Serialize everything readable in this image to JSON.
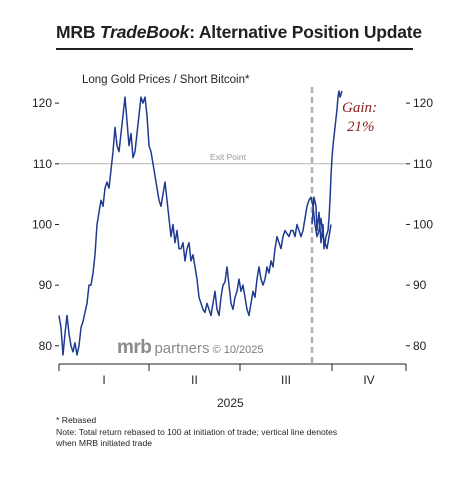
{
  "header": {
    "title_prefix": "MRB ",
    "title_italic": "TradeBook",
    "title_rest": ": Alternative Position Update"
  },
  "brand": {
    "logo_text": "mrb",
    "word": "partners",
    "date": "© 10/2025"
  },
  "notes": {
    "rebased": "* Rebased",
    "note_line1": "Note: Total return rebased to 100 at initiation of trade; vertical line denotes",
    "note_line2": "when MRB initiated trade"
  },
  "chart_data": {
    "type": "line",
    "title": "Long Gold Prices / Short Bitcoin*",
    "xlabel": "2025",
    "ylabel": "",
    "ylim": [
      77,
      122
    ],
    "y_ticks": [
      80,
      90,
      100,
      110,
      120
    ],
    "y_tick_labels": [
      "80",
      "90",
      "100",
      "110",
      "120"
    ],
    "x_range": [
      0,
      347
    ],
    "x_quarter_boundaries": [
      0,
      90,
      181,
      273,
      347
    ],
    "x_tick_labels": [
      "I",
      "II",
      "III",
      "IV"
    ],
    "grid": false,
    "reference_line": {
      "label": "Exit Point",
      "value": 110
    },
    "trade_start_day": 253,
    "annotation": {
      "line1": "Gain:",
      "line2": "21%"
    },
    "line_color": "#1f3a93",
    "series": [
      {
        "x": [
          0,
          2,
          4,
          6,
          8,
          10,
          12,
          14,
          16,
          18,
          20,
          22,
          24,
          26,
          28,
          30,
          32,
          34,
          36,
          38,
          40,
          42,
          44,
          46,
          48,
          50,
          52,
          54,
          56,
          58,
          60,
          62,
          64,
          66,
          68,
          70,
          72,
          74,
          76,
          78,
          80,
          82,
          84,
          86,
          88,
          90,
          92,
          94,
          96,
          98,
          100,
          102,
          104,
          106,
          108,
          110,
          112,
          114,
          116,
          118,
          120,
          122,
          124,
          126,
          128,
          130,
          132,
          134,
          136,
          138,
          140,
          142,
          144,
          146,
          148,
          150,
          152,
          154,
          156,
          158,
          160,
          162,
          164,
          166,
          168,
          170,
          172,
          174,
          176,
          178,
          180,
          182,
          184,
          186,
          188,
          190,
          192,
          194,
          196,
          198,
          200,
          202,
          204,
          206,
          208,
          210,
          212,
          214,
          216,
          218,
          220,
          222,
          224,
          226,
          228,
          230,
          232,
          234,
          236,
          238,
          240,
          242,
          244,
          246,
          248,
          250,
          252,
          254,
          256,
          258,
          260,
          262,
          264,
          266,
          268,
          270,
          272
        ],
        "values": [
          85,
          83,
          78.5,
          82,
          85,
          82,
          80,
          79,
          80.5,
          78.5,
          80,
          83,
          84,
          85.5,
          87,
          90,
          90,
          92,
          95,
          100,
          102,
          104,
          103,
          106,
          107,
          106,
          109,
          112,
          116,
          113,
          112,
          115,
          118,
          121,
          117,
          113,
          115,
          111,
          112,
          115,
          118,
          121,
          120,
          121,
          118,
          113,
          112,
          110,
          108,
          106,
          104,
          103,
          105,
          107,
          104,
          101,
          98,
          100,
          97,
          99,
          96,
          96,
          97,
          94,
          96,
          97,
          94,
          95,
          93,
          91,
          88,
          87,
          86,
          85.5,
          87,
          86,
          85,
          87,
          89,
          86,
          85,
          88,
          90,
          90.5,
          93,
          90,
          87,
          86,
          88,
          89,
          91,
          89,
          90,
          88,
          86,
          85,
          87,
          89,
          88,
          91,
          93,
          91,
          90,
          91,
          93,
          92,
          94,
          93,
          96,
          98,
          97,
          96,
          98,
          99,
          98.5,
          98,
          99,
          99,
          98,
          100,
          99,
          98,
          99,
          101,
          103,
          104,
          104.5,
          103,
          100,
          98,
          99,
          101,
          98,
          97,
          96,
          98,
          100
        ]
      },
      {
        "x": [
          253,
          255,
          257,
          258,
          260,
          262,
          264,
          265,
          267,
          269,
          270,
          271,
          272,
          273,
          274,
          276,
          278,
          279,
          280,
          281,
          283
        ],
        "values": [
          100,
          104.5,
          103,
          99,
          102,
          97,
          100,
          96,
          98,
          99,
          101,
          104,
          108,
          111,
          113,
          116,
          119,
          121,
          122,
          121,
          122
        ]
      }
    ]
  }
}
